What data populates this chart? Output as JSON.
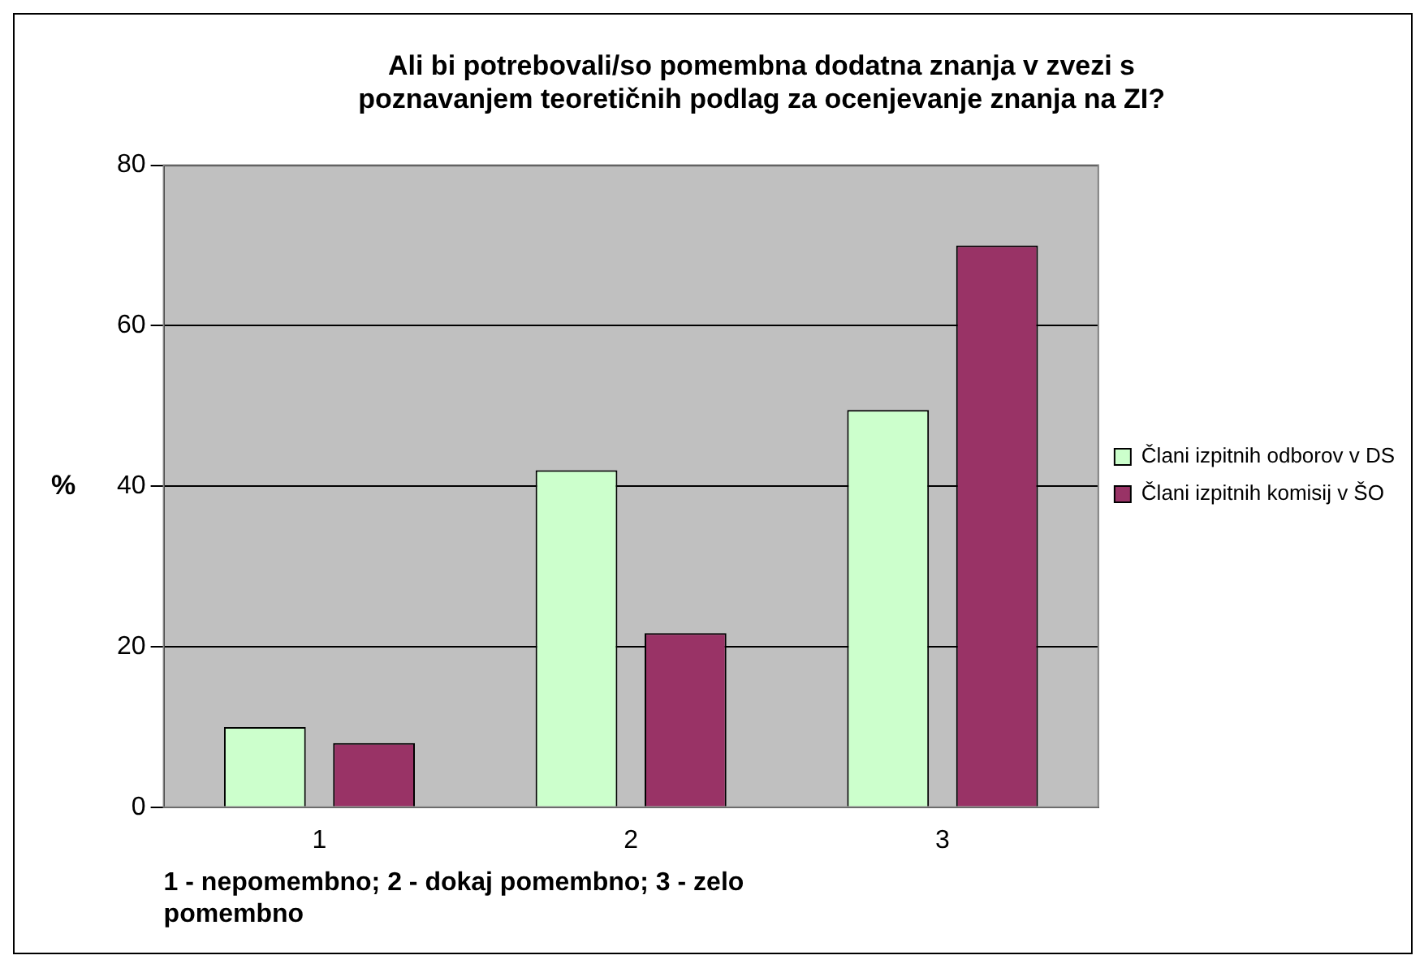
{
  "chart_data": {
    "type": "bar",
    "title": "Ali bi potrebovali/so pomembna dodatna znanja v zvezi s poznavanjem teoretičnih podlag za ocenjevanje znanja na ZI?",
    "xlabel": "1 - nepomembno; 2 - dokaj pomembno; 3 - zelo pomembno",
    "ylabel": "%",
    "categories": [
      "1",
      "2",
      "3"
    ],
    "series": [
      {
        "name": "Člani izpitnih odborov v DS",
        "color": "#ccffcc",
        "values": [
          10,
          42,
          49.5
        ]
      },
      {
        "name": "Člani izpitnih komisij v ŠO",
        "color": "#993366",
        "values": [
          8,
          21.7,
          70
        ]
      }
    ],
    "ylim": [
      0,
      80
    ],
    "yticks": [
      0,
      20,
      40,
      60,
      80
    ],
    "grid": "y",
    "legend": "right"
  }
}
